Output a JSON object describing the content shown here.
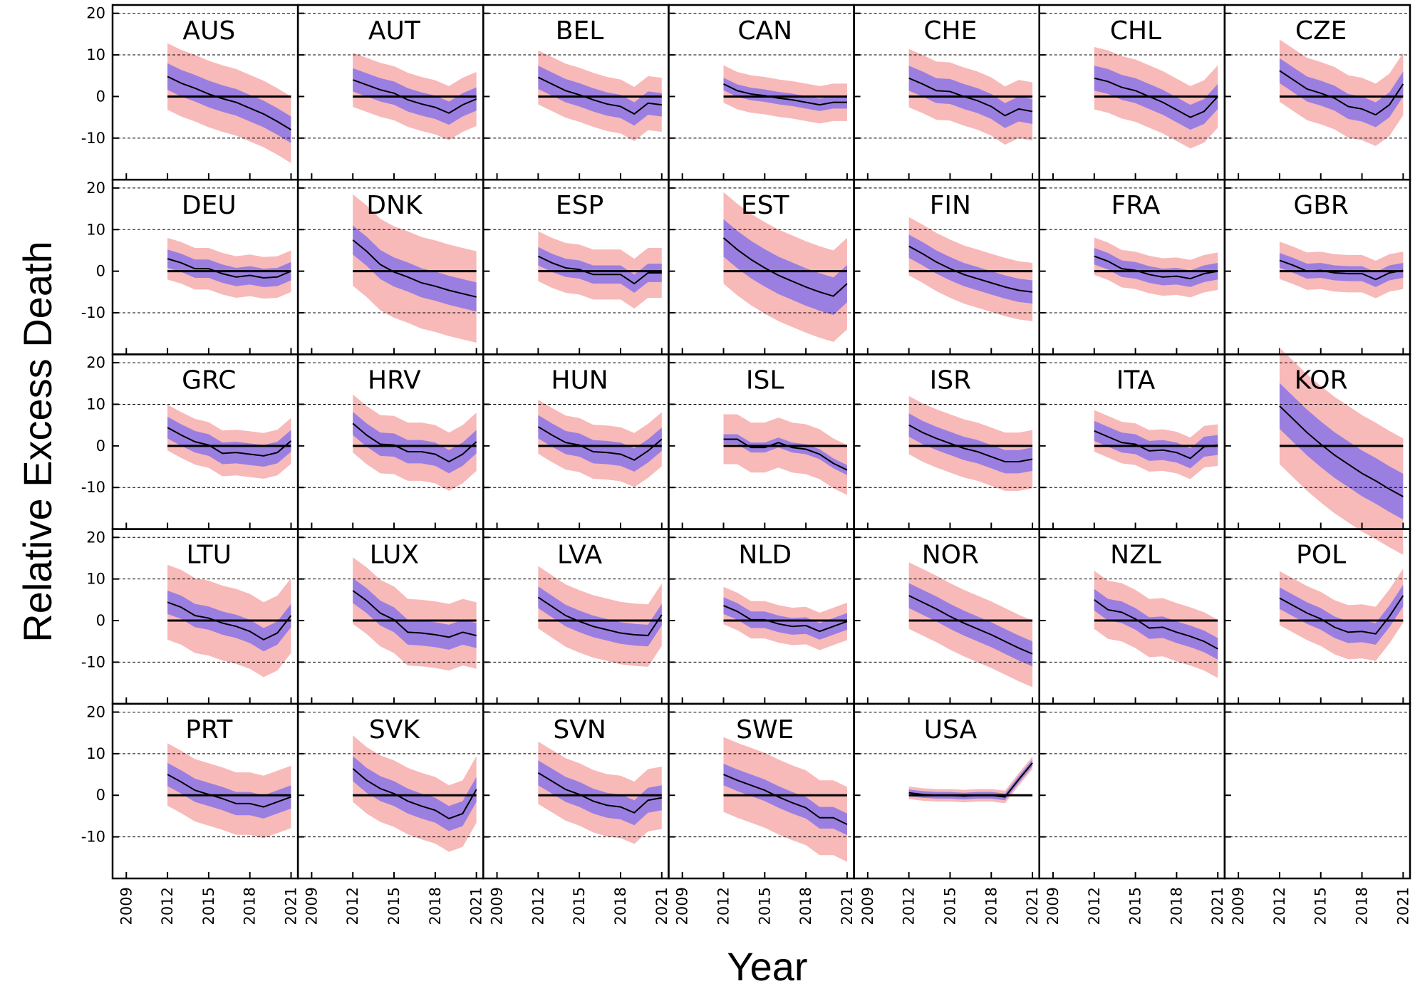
{
  "chart_data": {
    "type": "line",
    "xlabel": "Year",
    "ylabel": "Relative Excess Death",
    "xlim": [
      2008,
      2021.5
    ],
    "ylim": [
      -20,
      22
    ],
    "xticks": [
      2009,
      2012,
      2015,
      2018,
      2021
    ],
    "yticks": [
      20,
      10,
      0,
      -10
    ],
    "grid": "dashed horizontal",
    "colors": {
      "inner_band": "#9b7fe0",
      "outer_band": "#f8b9b9",
      "line": "#000000",
      "zero_line": "#000000"
    },
    "years": [
      2012,
      2013,
      2014,
      2015,
      2016,
      2017,
      2018,
      2019,
      2020,
      2021
    ],
    "panels": [
      {
        "name": "AUS",
        "values": [
          4.8,
          3.2,
          2.0,
          0.6,
          -0.5,
          -1.4,
          -2.8,
          -4.2,
          -6.0,
          -8.0
        ],
        "inner": 3.2,
        "outer": 8.0
      },
      {
        "name": "AUT",
        "values": [
          4.0,
          2.8,
          1.6,
          0.8,
          -0.8,
          -1.8,
          -2.6,
          -4.0,
          -2.0,
          -0.6
        ],
        "inner": 2.8,
        "outer": 6.5
      },
      {
        "name": "BEL",
        "values": [
          4.6,
          3.0,
          1.4,
          0.4,
          -0.8,
          -1.8,
          -2.4,
          -4.2,
          -1.6,
          -2.0
        ],
        "inner": 2.8,
        "outer": 6.5
      },
      {
        "name": "CAN",
        "values": [
          3.0,
          1.4,
          0.6,
          0.2,
          -0.4,
          -0.8,
          -1.4,
          -2.0,
          -1.4,
          -1.4
        ],
        "inner": 1.5,
        "outer": 4.5
      },
      {
        "name": "CHE",
        "values": [
          4.4,
          3.0,
          1.4,
          1.2,
          0.0,
          -1.0,
          -2.4,
          -4.6,
          -3.0,
          -3.6
        ],
        "inner": 3.0,
        "outer": 7.0
      },
      {
        "name": "CHL",
        "values": [
          4.4,
          3.6,
          2.2,
          1.4,
          0.0,
          -1.4,
          -3.2,
          -5.0,
          -3.6,
          0.0
        ],
        "inner": 3.0,
        "outer": 7.5
      },
      {
        "name": "CZE",
        "values": [
          6.2,
          4.0,
          1.8,
          0.8,
          -0.4,
          -2.4,
          -3.0,
          -4.4,
          -2.0,
          3.0
        ],
        "inner": 3.0,
        "outer": 7.5
      },
      {
        "name": "DEU",
        "values": [
          3.0,
          2.0,
          0.6,
          0.6,
          -0.6,
          -1.4,
          -1.0,
          -1.6,
          -1.4,
          0.0
        ],
        "inner": 2.2,
        "outer": 5.0
      },
      {
        "name": "DNK",
        "values": [
          7.5,
          4.8,
          1.6,
          -0.2,
          -1.4,
          -2.8,
          -3.6,
          -4.6,
          -5.4,
          -6.2
        ],
        "inner": 3.5,
        "outer": 11.0
      },
      {
        "name": "ESP",
        "values": [
          3.6,
          2.0,
          0.8,
          0.4,
          -0.8,
          -0.8,
          -0.8,
          -3.0,
          -0.4,
          -0.4
        ],
        "inner": 2.2,
        "outer": 6.0
      },
      {
        "name": "EST",
        "values": [
          8.0,
          5.2,
          2.8,
          0.8,
          -1.0,
          -2.4,
          -3.8,
          -5.0,
          -6.0,
          -3.0
        ],
        "inner": 4.5,
        "outer": 11.0
      },
      {
        "name": "FIN",
        "values": [
          6.0,
          4.2,
          2.2,
          0.6,
          -0.8,
          -1.8,
          -2.8,
          -3.8,
          -4.6,
          -5.0
        ],
        "inner": 2.8,
        "outer": 7.0
      },
      {
        "name": "FRA",
        "values": [
          3.6,
          2.4,
          0.6,
          0.2,
          -0.8,
          -1.4,
          -1.2,
          -1.8,
          -0.6,
          0.0
        ],
        "inner": 2.0,
        "outer": 4.5
      },
      {
        "name": "GBR",
        "values": [
          2.6,
          1.4,
          0.0,
          0.2,
          -0.4,
          -0.6,
          -0.6,
          -2.0,
          -0.4,
          0.2
        ],
        "inner": 1.8,
        "outer": 4.5
      },
      {
        "name": "GRC",
        "values": [
          4.4,
          2.6,
          1.0,
          0.2,
          -1.8,
          -1.6,
          -2.0,
          -2.4,
          -1.6,
          1.2
        ],
        "inner": 2.6,
        "outer": 5.5
      },
      {
        "name": "HRV",
        "values": [
          5.4,
          2.6,
          0.4,
          0.2,
          -1.4,
          -1.4,
          -2.0,
          -3.8,
          -2.0,
          1.0
        ],
        "inner": 2.8,
        "outer": 7.0
      },
      {
        "name": "HUN",
        "values": [
          4.6,
          2.6,
          0.8,
          0.2,
          -1.4,
          -1.6,
          -2.0,
          -3.4,
          -1.2,
          1.6
        ],
        "inner": 2.8,
        "outer": 6.5
      },
      {
        "name": "ISL",
        "values": [
          1.6,
          1.6,
          -0.4,
          -0.4,
          0.8,
          -0.4,
          -0.8,
          -2.0,
          -4.2,
          -5.8
        ],
        "inner": 1.2,
        "outer": 6.0
      },
      {
        "name": "ISR",
        "values": [
          5.0,
          3.2,
          1.8,
          0.6,
          -0.6,
          -1.4,
          -2.6,
          -3.8,
          -3.8,
          -3.2
        ],
        "inner": 2.8,
        "outer": 7.0
      },
      {
        "name": "ITA",
        "values": [
          3.6,
          2.2,
          0.8,
          0.4,
          -1.2,
          -1.0,
          -1.6,
          -3.0,
          -0.2,
          0.2
        ],
        "inner": 2.4,
        "outer": 5.0
      },
      {
        "name": "KOR",
        "values": [
          9.6,
          6.4,
          3.2,
          0.4,
          -2.2,
          -4.4,
          -6.6,
          -8.4,
          -10.4,
          -12.2
        ],
        "inner": 5.5,
        "outer": 14.0
      },
      {
        "name": "LTU",
        "values": [
          4.4,
          3.2,
          1.2,
          0.6,
          -0.6,
          -1.4,
          -2.6,
          -4.6,
          -3.0,
          1.2
        ],
        "inner": 2.8,
        "outer": 9.0
      },
      {
        "name": "LUX",
        "values": [
          7.2,
          4.8,
          1.8,
          0.2,
          -2.8,
          -3.0,
          -3.4,
          -4.0,
          -2.8,
          -3.6
        ],
        "inner": 3.0,
        "outer": 8.0
      },
      {
        "name": "LVA",
        "values": [
          5.6,
          3.4,
          1.2,
          -0.2,
          -1.4,
          -2.2,
          -3.0,
          -3.4,
          -3.6,
          1.4
        ],
        "inner": 2.6,
        "outer": 7.5
      },
      {
        "name": "NLD",
        "values": [
          3.6,
          2.2,
          0.2,
          0.2,
          -0.8,
          -1.4,
          -1.2,
          -2.6,
          -1.4,
          -0.2
        ],
        "inner": 2.0,
        "outer": 4.5
      },
      {
        "name": "NOR",
        "values": [
          6.0,
          4.4,
          2.8,
          1.0,
          -0.6,
          -2.0,
          -3.4,
          -5.0,
          -6.6,
          -8.0
        ],
        "inner": 3.0,
        "outer": 8.0
      },
      {
        "name": "NZL",
        "values": [
          5.0,
          2.6,
          2.0,
          0.4,
          -1.8,
          -1.6,
          -2.8,
          -3.8,
          -5.0,
          -6.8
        ],
        "inner": 2.6,
        "outer": 7.0
      },
      {
        "name": "POL",
        "values": [
          5.4,
          3.6,
          1.8,
          0.4,
          -1.6,
          -2.8,
          -2.6,
          -3.2,
          1.0,
          6.0
        ],
        "inner": 2.6,
        "outer": 6.5
      },
      {
        "name": "PRT",
        "values": [
          5.0,
          3.2,
          1.2,
          0.2,
          -0.8,
          -2.0,
          -2.0,
          -2.8,
          -1.6,
          -0.4
        ],
        "inner": 2.8,
        "outer": 7.5
      },
      {
        "name": "SVK",
        "values": [
          6.4,
          3.6,
          1.6,
          0.4,
          -1.4,
          -2.6,
          -3.6,
          -5.6,
          -4.4,
          1.4
        ],
        "inner": 3.0,
        "outer": 8.0
      },
      {
        "name": "SVN",
        "values": [
          5.4,
          3.4,
          1.4,
          0.2,
          -1.4,
          -2.4,
          -2.8,
          -4.2,
          -1.2,
          -0.6
        ],
        "inner": 3.0,
        "outer": 7.5
      },
      {
        "name": "SWE",
        "values": [
          5.0,
          3.6,
          2.4,
          1.2,
          -0.4,
          -1.8,
          -3.0,
          -5.4,
          -5.4,
          -7.0
        ],
        "inner": 2.6,
        "outer": 9.0
      },
      {
        "name": "USA",
        "values": [
          0.6,
          0.2,
          0.0,
          0.0,
          -0.2,
          0.0,
          0.0,
          -0.4,
          3.8,
          7.8
        ],
        "inner": 0.8,
        "outer": 1.5
      }
    ]
  }
}
